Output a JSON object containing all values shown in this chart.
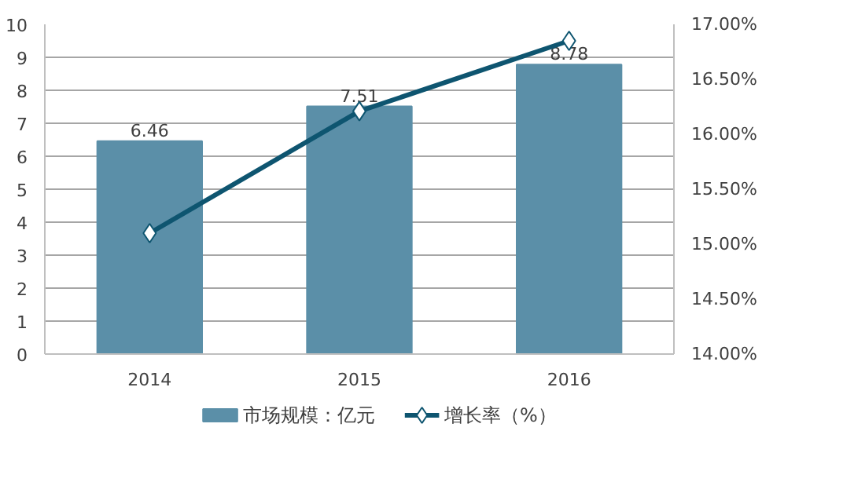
{
  "chart_data": {
    "type": "bar",
    "categories": [
      "2014",
      "2015",
      "2016"
    ],
    "series": [
      {
        "name": "市场规模：亿元",
        "color": "#5b8fa8",
        "values": [
          6.46,
          7.51,
          8.78
        ],
        "value_labels": [
          "6.46",
          "7.51",
          "8.78"
        ]
      },
      {
        "name": "增长率（%）",
        "type": "line",
        "axis": "y2",
        "color": "#0e5570",
        "marker": "diamond",
        "values": [
          15.1,
          16.21,
          16.85
        ]
      }
    ],
    "ylim": [
      0,
      10
    ],
    "yticks": [
      0,
      1,
      2,
      3,
      4,
      5,
      6,
      7,
      8,
      9,
      10
    ],
    "y2lim": [
      14,
      17
    ],
    "y2ticks": [
      {
        "value": 14,
        "label": "14.00%"
      },
      {
        "value": 14.5,
        "label": "14.50%"
      },
      {
        "value": 15,
        "label": "15.00%"
      },
      {
        "value": 15.5,
        "label": "15.50%"
      },
      {
        "value": 16,
        "label": "16.00%"
      },
      {
        "value": 16.5,
        "label": "16.50%"
      },
      {
        "value": 17,
        "label": "17.00%"
      }
    ],
    "grid": "y",
    "legend": "bottom"
  }
}
